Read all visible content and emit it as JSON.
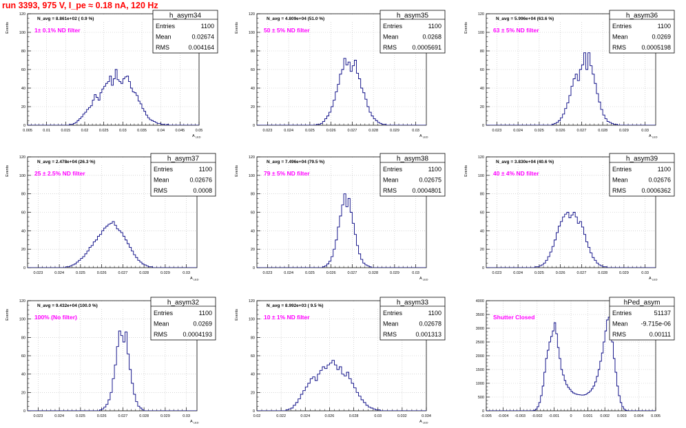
{
  "canvas_title": "run 3393,   975 V, I_pe ≈ 0.18 nA, 120 Hz",
  "colors": {
    "title": "#ff0000",
    "filter_label": "#ff00ff",
    "histogram": "#000080",
    "grid": "#bbbbbb"
  },
  "stat_labels": {
    "entries": "Entries",
    "mean": "Mean",
    "rms": "RMS"
  },
  "chart_data": [
    {
      "type": "histogram",
      "name": "h_asym34",
      "ylabel": "Events",
      "xlabel": "A_LED",
      "nav": "N_avg = 8.861e+02 ( 0.9 %)",
      "filter": "1± 0.1% ND filter",
      "entries": "1100",
      "mean": "0.02674",
      "rms": "0.004164",
      "xlim": [
        0.005,
        0.05
      ],
      "ylim": [
        0,
        120
      ],
      "xticks": [
        0.005,
        0.01,
        0.015,
        0.02,
        0.025,
        0.03,
        0.035,
        0.04,
        0.045,
        0.05
      ],
      "xtick_labels": [
        "0.005",
        "0.01",
        "0.015",
        "0.02",
        "0.025",
        "0.03",
        "0.035",
        "0.04",
        "0.045",
        "0.05"
      ],
      "yticks": [
        0,
        20,
        40,
        60,
        80,
        100,
        120
      ],
      "ytick_labels": [
        "0",
        "20",
        "40",
        "60",
        "80",
        "100",
        "120"
      ],
      "bin_low": 0.005,
      "bin_width": 0.0005,
      "counts": [
        0,
        0,
        0,
        0,
        0,
        0,
        0,
        0,
        0,
        0,
        0,
        0,
        0,
        0,
        0,
        0,
        0,
        0,
        0,
        0,
        0,
        0,
        1,
        1,
        2,
        3,
        5,
        7,
        9,
        12,
        14,
        17,
        19,
        21,
        27,
        33,
        30,
        27,
        35,
        39,
        42,
        45,
        47,
        53,
        43,
        50,
        60,
        49,
        47,
        45,
        50,
        52,
        53,
        47,
        40,
        36,
        35,
        32,
        26,
        23,
        18,
        15,
        11,
        8,
        6,
        5,
        4,
        3,
        2,
        2,
        1,
        1,
        0,
        1,
        0,
        0,
        0,
        0,
        0,
        0,
        0,
        0,
        0,
        0,
        0,
        0,
        0,
        0,
        0,
        0
      ]
    },
    {
      "type": "histogram",
      "name": "h_asym35",
      "ylabel": "Events",
      "xlabel": "A_LED",
      "nav": "N_avg = 4.809e+04 (51.0 %)",
      "filter": "50 ± 5% ND filter",
      "entries": "1100",
      "mean": "0.0268",
      "rms": "0.0005691",
      "xlim": [
        0.0225,
        0.0305
      ],
      "ylim": [
        0,
        120
      ],
      "xticks": [
        0.023,
        0.024,
        0.025,
        0.026,
        0.027,
        0.028,
        0.029,
        0.03
      ],
      "xtick_labels": [
        "0.023",
        "0.024",
        "0.025",
        "0.026",
        "0.027",
        "0.028",
        "0.029",
        "0.03"
      ],
      "yticks": [
        0,
        20,
        40,
        60,
        80,
        100,
        120
      ],
      "ytick_labels": [
        "0",
        "20",
        "40",
        "60",
        "80",
        "100",
        "120"
      ],
      "bin_low": 0.0225,
      "bin_width": 0.0001,
      "counts": [
        0,
        0,
        0,
        0,
        0,
        0,
        0,
        0,
        0,
        0,
        0,
        0,
        0,
        0,
        0,
        0,
        0,
        0,
        0,
        0,
        0,
        0,
        0,
        0,
        0,
        0,
        0,
        0,
        1,
        1,
        2,
        4,
        7,
        10,
        14,
        20,
        27,
        36,
        44,
        55,
        60,
        72,
        65,
        68,
        58,
        64,
        70,
        56,
        50,
        40,
        35,
        28,
        20,
        14,
        10,
        7,
        5,
        3,
        2,
        1,
        1,
        0,
        0,
        0,
        0,
        0,
        0,
        0,
        0,
        0,
        0,
        0,
        0,
        0,
        0,
        0,
        0,
        0,
        0,
        0
      ]
    },
    {
      "type": "histogram",
      "name": "h_asym36",
      "ylabel": "Events",
      "xlabel": "A_LED",
      "nav": "N_avg = 5.996e+04 (63.6 %)",
      "filter": "63 ± 5% ND filter",
      "entries": "1100",
      "mean": "0.0269",
      "rms": "0.0005198",
      "xlim": [
        0.0225,
        0.0305
      ],
      "ylim": [
        0,
        120
      ],
      "xticks": [
        0.023,
        0.024,
        0.025,
        0.026,
        0.027,
        0.028,
        0.029,
        0.03
      ],
      "xtick_labels": [
        "0.023",
        "0.024",
        "0.025",
        "0.026",
        "0.027",
        "0.028",
        "0.029",
        "0.03"
      ],
      "yticks": [
        0,
        20,
        40,
        60,
        80,
        100,
        120
      ],
      "ytick_labels": [
        "0",
        "20",
        "40",
        "60",
        "80",
        "100",
        "120"
      ],
      "bin_low": 0.0225,
      "bin_width": 0.0001,
      "counts": [
        0,
        0,
        0,
        0,
        0,
        0,
        0,
        0,
        0,
        0,
        0,
        0,
        0,
        0,
        0,
        0,
        0,
        0,
        0,
        0,
        0,
        0,
        0,
        0,
        0,
        0,
        0,
        0,
        0,
        0,
        0,
        1,
        2,
        3,
        5,
        8,
        12,
        18,
        24,
        32,
        42,
        50,
        55,
        48,
        60,
        65,
        78,
        60,
        78,
        64,
        55,
        45,
        34,
        25,
        17,
        11,
        7,
        4,
        3,
        2,
        1,
        1,
        0,
        0,
        0,
        0,
        0,
        0,
        0,
        0,
        0,
        0,
        0,
        0,
        0,
        0,
        0,
        0,
        0,
        0
      ]
    },
    {
      "type": "histogram",
      "name": "h_asym37",
      "ylabel": "Events",
      "xlabel": "A_LED",
      "nav": "N_avg = 2.478e+04 (26.3 %)",
      "filter": "25 ± 2.5% ND filter",
      "entries": "1100",
      "mean": "0.02676",
      "rms": "0.0008",
      "xlim": [
        0.0225,
        0.0305
      ],
      "ylim": [
        0,
        120
      ],
      "xticks": [
        0.023,
        0.024,
        0.025,
        0.026,
        0.027,
        0.028,
        0.029,
        0.03
      ],
      "xtick_labels": [
        "0.023",
        "0.024",
        "0.025",
        "0.026",
        "0.027",
        "0.028",
        "0.029",
        "0.03"
      ],
      "yticks": [
        0,
        20,
        40,
        60,
        80,
        100,
        120
      ],
      "ytick_labels": [
        "0",
        "20",
        "40",
        "60",
        "80",
        "100",
        "120"
      ],
      "bin_low": 0.0225,
      "bin_width": 0.0001,
      "counts": [
        0,
        0,
        0,
        0,
        0,
        0,
        0,
        0,
        0,
        0,
        0,
        0,
        0,
        0,
        0,
        0,
        0,
        0,
        1,
        1,
        2,
        3,
        4,
        6,
        8,
        10,
        12,
        15,
        18,
        22,
        24,
        28,
        30,
        34,
        36,
        40,
        43,
        45,
        47,
        48,
        50,
        46,
        42,
        40,
        38,
        34,
        30,
        26,
        22,
        18,
        14,
        11,
        8,
        6,
        4,
        3,
        2,
        1,
        1,
        0,
        0,
        0,
        0,
        0,
        0,
        0,
        0,
        0,
        0,
        0,
        0,
        0,
        0,
        0,
        0,
        0,
        0,
        0,
        0,
        0
      ]
    },
    {
      "type": "histogram",
      "name": "h_asym38",
      "ylabel": "Events",
      "xlabel": "A_LED",
      "nav": "N_avg = 7.496e+04 (79.5 %)",
      "filter": "79 ± 5% ND filter",
      "entries": "1100",
      "mean": "0.02675",
      "rms": "0.0004801",
      "xlim": [
        0.0225,
        0.0305
      ],
      "ylim": [
        0,
        120
      ],
      "xticks": [
        0.023,
        0.024,
        0.025,
        0.026,
        0.027,
        0.028,
        0.029,
        0.03
      ],
      "xtick_labels": [
        "0.023",
        "0.024",
        "0.025",
        "0.026",
        "0.027",
        "0.028",
        "0.029",
        "0.03"
      ],
      "yticks": [
        0,
        20,
        40,
        60,
        80,
        100,
        120
      ],
      "ytick_labels": [
        "0",
        "20",
        "40",
        "60",
        "80",
        "100",
        "120"
      ],
      "bin_low": 0.0225,
      "bin_width": 0.0001,
      "counts": [
        0,
        0,
        0,
        0,
        0,
        0,
        0,
        0,
        0,
        0,
        0,
        0,
        0,
        0,
        0,
        0,
        0,
        0,
        0,
        0,
        0,
        0,
        0,
        0,
        0,
        0,
        0,
        0,
        0,
        0,
        0,
        1,
        2,
        4,
        7,
        12,
        20,
        30,
        44,
        56,
        68,
        80,
        66,
        75,
        60,
        48,
        36,
        24,
        15,
        9,
        5,
        3,
        2,
        1,
        0,
        0,
        0,
        0,
        0,
        0,
        0,
        0,
        0,
        0,
        0,
        0,
        0,
        0,
        0,
        0,
        0,
        0,
        0,
        0,
        0,
        0,
        0,
        0,
        0,
        0
      ]
    },
    {
      "type": "histogram",
      "name": "h_asym39",
      "ylabel": "Events",
      "xlabel": "A_LED",
      "nav": "N_avg = 3.830e+04 (40.6 %)",
      "filter": "40 ± 4% ND filter",
      "entries": "1100",
      "mean": "0.02676",
      "rms": "0.0006362",
      "xlim": [
        0.0225,
        0.0305
      ],
      "ylim": [
        0,
        120
      ],
      "xticks": [
        0.023,
        0.024,
        0.025,
        0.026,
        0.027,
        0.028,
        0.029,
        0.03
      ],
      "xtick_labels": [
        "0.023",
        "0.024",
        "0.025",
        "0.026",
        "0.027",
        "0.028",
        "0.029",
        "0.03"
      ],
      "yticks": [
        0,
        20,
        40,
        60,
        80,
        100,
        120
      ],
      "ytick_labels": [
        "0",
        "20",
        "40",
        "60",
        "80",
        "100",
        "120"
      ],
      "bin_low": 0.0225,
      "bin_width": 0.0001,
      "counts": [
        0,
        0,
        0,
        0,
        0,
        0,
        0,
        0,
        0,
        0,
        0,
        0,
        0,
        0,
        0,
        0,
        0,
        0,
        0,
        0,
        0,
        0,
        0,
        1,
        1,
        2,
        3,
        5,
        8,
        12,
        17,
        23,
        30,
        38,
        45,
        50,
        55,
        58,
        60,
        54,
        57,
        60,
        55,
        48,
        50,
        44,
        36,
        28,
        22,
        16,
        11,
        8,
        5,
        3,
        2,
        1,
        1,
        0,
        0,
        0,
        0,
        0,
        0,
        0,
        0,
        0,
        0,
        0,
        0,
        0,
        0,
        0,
        0,
        0,
        0,
        0,
        0,
        0,
        0,
        0
      ]
    },
    {
      "type": "histogram",
      "name": "h_asym32",
      "ylabel": "Events",
      "xlabel": "A_LED",
      "nav": "N_avg = 9.432e+04 (100.0 %)",
      "filter": "100% (No filter)",
      "entries": "1100",
      "mean": "0.0269",
      "rms": "0.0004193",
      "xlim": [
        0.0225,
        0.0305
      ],
      "ylim": [
        0,
        120
      ],
      "xticks": [
        0.023,
        0.024,
        0.025,
        0.026,
        0.027,
        0.028,
        0.029,
        0.03
      ],
      "xtick_labels": [
        "0.023",
        "0.024",
        "0.025",
        "0.026",
        "0.027",
        "0.028",
        "0.029",
        "0.03"
      ],
      "yticks": [
        0,
        20,
        40,
        60,
        80,
        100,
        120
      ],
      "ytick_labels": [
        "0",
        "20",
        "40",
        "60",
        "80",
        "100",
        "120"
      ],
      "bin_low": 0.0225,
      "bin_width": 0.0001,
      "counts": [
        0,
        0,
        0,
        0,
        0,
        0,
        0,
        0,
        0,
        0,
        0,
        0,
        0,
        0,
        0,
        0,
        0,
        0,
        0,
        0,
        0,
        0,
        0,
        0,
        0,
        0,
        0,
        0,
        0,
        0,
        0,
        0,
        0,
        0,
        1,
        2,
        4,
        7,
        12,
        20,
        35,
        50,
        70,
        87,
        82,
        75,
        86,
        62,
        45,
        30,
        18,
        10,
        5,
        3,
        1,
        0,
        0,
        0,
        0,
        0,
        0,
        0,
        0,
        0,
        0,
        0,
        0,
        0,
        0,
        0,
        0,
        0,
        0,
        0,
        0,
        0,
        0,
        0,
        0,
        0
      ]
    },
    {
      "type": "histogram",
      "name": "h_asym33",
      "ylabel": "Events",
      "xlabel": "A_LED",
      "nav": "N_avg = 8.992e+03 ( 9.5 %)",
      "filter": "10 ± 1% ND filter",
      "entries": "1100",
      "mean": "0.02678",
      "rms": "0.001313",
      "xlim": [
        0.02,
        0.034
      ],
      "ylim": [
        0,
        120
      ],
      "xticks": [
        0.02,
        0.022,
        0.024,
        0.026,
        0.028,
        0.03,
        0.032,
        0.034
      ],
      "xtick_labels": [
        "0.02",
        "0.022",
        "0.024",
        "0.026",
        "0.028",
        "0.03",
        "0.032",
        "0.034"
      ],
      "yticks": [
        0,
        20,
        40,
        60,
        80,
        100,
        120
      ],
      "ytick_labels": [
        "0",
        "20",
        "40",
        "60",
        "80",
        "100",
        "120"
      ],
      "bin_low": 0.02,
      "bin_width": 0.0002,
      "counts": [
        0,
        0,
        0,
        0,
        0,
        0,
        0,
        0,
        0,
        0,
        0,
        0,
        1,
        2,
        3,
        6,
        9,
        13,
        18,
        22,
        26,
        30,
        35,
        37,
        33,
        40,
        44,
        48,
        46,
        50,
        52,
        55,
        50,
        45,
        48,
        40,
        38,
        42,
        35,
        30,
        25,
        20,
        16,
        12,
        9,
        6,
        4,
        3,
        2,
        1,
        1,
        0,
        0,
        0,
        0,
        0,
        0,
        0,
        0,
        0,
        0,
        0,
        0,
        0,
        0,
        0,
        0,
        0,
        0,
        0
      ]
    },
    {
      "type": "histogram",
      "name": "hPed_asym",
      "ylabel": "",
      "xlabel": "",
      "nav": "",
      "filter": "Shutter Closed",
      "entries": "51137",
      "mean": "-9.715e-06",
      "rms": "0.00111",
      "xlim": [
        -0.005,
        0.005
      ],
      "ylim": [
        0,
        4000
      ],
      "xticks": [
        -0.005,
        -0.004,
        -0.003,
        -0.002,
        -0.001,
        0,
        0.001,
        0.002,
        0.003,
        0.004,
        0.005
      ],
      "xtick_labels": [
        "-0.005",
        "-0.004",
        "-0.003",
        "-0.002",
        "-0.001",
        "0",
        "0.001",
        "0.002",
        "0.003",
        "0.004",
        "0.005"
      ],
      "yticks": [
        0,
        500,
        1000,
        1500,
        2000,
        2500,
        3000,
        3500,
        4000
      ],
      "ytick_labels": [
        "0",
        "500",
        "1000",
        "1500",
        "2000",
        "2500",
        "3000",
        "3500",
        "4000"
      ],
      "bin_low": -0.005,
      "bin_width": 0.0001,
      "counts": [
        0,
        0,
        0,
        0,
        0,
        0,
        0,
        0,
        0,
        0,
        0,
        0,
        0,
        0,
        0,
        0,
        0,
        0,
        0,
        0,
        0,
        0,
        0,
        0,
        0,
        0,
        0,
        5,
        20,
        60,
        150,
        300,
        550,
        900,
        1400,
        1900,
        2200,
        2500,
        2700,
        2900,
        3200,
        2800,
        2300,
        1900,
        1500,
        1300,
        1100,
        950,
        850,
        780,
        700,
        650,
        620,
        600,
        590,
        580,
        570,
        575,
        590,
        620,
        660,
        720,
        800,
        900,
        1050,
        1250,
        1500,
        1800,
        2100,
        2500,
        2900,
        3300,
        3400,
        3000,
        2500,
        1900,
        1400,
        900,
        550,
        300,
        150,
        60,
        20,
        5,
        0,
        0,
        0,
        0,
        0,
        0,
        0,
        0,
        0,
        0,
        0,
        0,
        0,
        0,
        0,
        0
      ]
    }
  ]
}
